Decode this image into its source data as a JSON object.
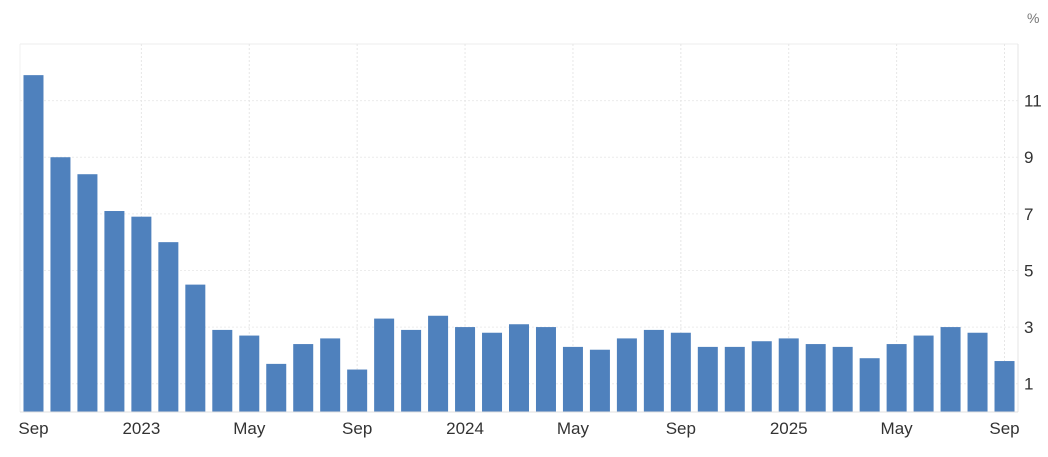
{
  "chart_data": {
    "type": "bar",
    "title": "",
    "xlabel": "",
    "ylabel": "",
    "unit": "%",
    "bar_color": "#4f81bd",
    "grid": true,
    "ylim": [
      0,
      13
    ],
    "yticks": [
      1,
      3,
      5,
      7,
      9,
      11
    ],
    "ytick_labels": [
      "1",
      "3",
      "5",
      "7",
      "9",
      "11"
    ],
    "categories": [
      "Sep 2022",
      "Oct 2022",
      "Nov 2022",
      "Dec 2022",
      "Jan 2023",
      "Feb 2023",
      "Mar 2023",
      "Apr 2023",
      "May 2023",
      "Jun 2023",
      "Jul 2023",
      "Aug 2023",
      "Sep 2023",
      "Oct 2023",
      "Nov 2023",
      "Dec 2023",
      "Jan 2024",
      "Feb 2024",
      "Mar 2024",
      "Apr 2024",
      "May 2024",
      "Jun 2024",
      "Jul 2024",
      "Aug 2024",
      "Sep 2024",
      "Oct 2024",
      "Nov 2024",
      "Dec 2024",
      "Jan 2025",
      "Feb 2025",
      "Mar 2025",
      "Apr 2025",
      "May 2025",
      "Jun 2025",
      "Jul 2025",
      "Aug 2025",
      "Sep 2025"
    ],
    "values": [
      11.9,
      9.0,
      8.4,
      7.1,
      6.9,
      6.0,
      4.5,
      2.9,
      2.7,
      1.7,
      2.4,
      2.6,
      1.5,
      3.3,
      2.9,
      3.4,
      3.0,
      2.8,
      3.1,
      3.0,
      2.3,
      2.2,
      2.6,
      2.9,
      2.8,
      2.3,
      2.3,
      2.5,
      2.6,
      2.4,
      2.3,
      1.9,
      2.4,
      2.7,
      3.0,
      2.8,
      1.8
    ],
    "xtick_labels": [
      {
        "index": 0,
        "label": "Sep"
      },
      {
        "index": 4,
        "label": "2023"
      },
      {
        "index": 8,
        "label": "May"
      },
      {
        "index": 12,
        "label": "Sep"
      },
      {
        "index": 16,
        "label": "2024"
      },
      {
        "index": 20,
        "label": "May"
      },
      {
        "index": 24,
        "label": "Sep"
      },
      {
        "index": 28,
        "label": "2025"
      },
      {
        "index": 32,
        "label": "May"
      },
      {
        "index": 36,
        "label": "Sep"
      }
    ]
  }
}
